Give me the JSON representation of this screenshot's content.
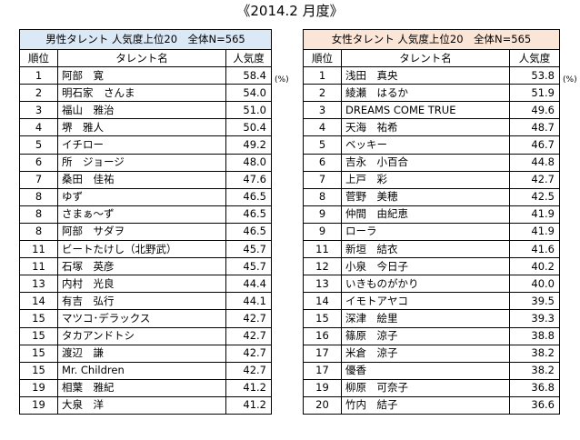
{
  "page_title": "《2014.2 月度》",
  "unit": "(%)",
  "male": {
    "header": "男性タレント 人気度上位20　全体N=565",
    "col_rank": "順位",
    "col_name": "タレント名",
    "col_value": "人気度",
    "rows": [
      {
        "rank": "1",
        "name": "阿部　寛",
        "value": "58.4"
      },
      {
        "rank": "2",
        "name": "明石家　さんま",
        "value": "54.0"
      },
      {
        "rank": "3",
        "name": "福山　雅治",
        "value": "51.0"
      },
      {
        "rank": "4",
        "name": "堺　雅人",
        "value": "50.4"
      },
      {
        "rank": "5",
        "name": "イチロー",
        "value": "49.2"
      },
      {
        "rank": "6",
        "name": "所　ジョージ",
        "value": "48.0"
      },
      {
        "rank": "7",
        "name": "桑田　佳祐",
        "value": "47.6"
      },
      {
        "rank": "8",
        "name": "ゆず",
        "value": "46.5"
      },
      {
        "rank": "8",
        "name": "さまぁ～ず",
        "value": "46.5"
      },
      {
        "rank": "8",
        "name": "阿部　サダヲ",
        "value": "46.5"
      },
      {
        "rank": "11",
        "name": "ビートたけし（北野武）",
        "value": "45.7"
      },
      {
        "rank": "11",
        "name": "石塚　英彦",
        "value": "45.7"
      },
      {
        "rank": "13",
        "name": "内村　光良",
        "value": "44.4"
      },
      {
        "rank": "14",
        "name": "有吉　弘行",
        "value": "44.1"
      },
      {
        "rank": "15",
        "name": "マツコ･デラックス",
        "value": "42.7"
      },
      {
        "rank": "15",
        "name": "タカアンドトシ",
        "value": "42.7"
      },
      {
        "rank": "15",
        "name": "渡辺　謙",
        "value": "42.7"
      },
      {
        "rank": "15",
        "name": "Mr. Children",
        "value": "42.7"
      },
      {
        "rank": "19",
        "name": "相葉　雅紀",
        "value": "41.2"
      },
      {
        "rank": "19",
        "name": "大泉　洋",
        "value": "41.2"
      }
    ]
  },
  "female": {
    "header": "女性タレント 人気度上位20　全体N=565",
    "col_rank": "順位",
    "col_name": "タレント名",
    "col_value": "人気度",
    "rows": [
      {
        "rank": "1",
        "name": "浅田　真央",
        "value": "53.8"
      },
      {
        "rank": "2",
        "name": "綾瀬　はるか",
        "value": "51.9"
      },
      {
        "rank": "3",
        "name": "DREAMS COME TRUE",
        "value": "49.6"
      },
      {
        "rank": "4",
        "name": "天海　祐希",
        "value": "48.7"
      },
      {
        "rank": "5",
        "name": "ベッキー",
        "value": "46.7"
      },
      {
        "rank": "6",
        "name": "吉永　小百合",
        "value": "44.8"
      },
      {
        "rank": "7",
        "name": "上戸　彩",
        "value": "42.7"
      },
      {
        "rank": "8",
        "name": "菅野　美穂",
        "value": "42.5"
      },
      {
        "rank": "9",
        "name": "仲間　由紀恵",
        "value": "41.9"
      },
      {
        "rank": "9",
        "name": "ローラ",
        "value": "41.9"
      },
      {
        "rank": "11",
        "name": "新垣　結衣",
        "value": "41.6"
      },
      {
        "rank": "12",
        "name": "小泉　今日子",
        "value": "40.2"
      },
      {
        "rank": "13",
        "name": "いきものがかり",
        "value": "40.0"
      },
      {
        "rank": "14",
        "name": "イモトアヤコ",
        "value": "39.5"
      },
      {
        "rank": "15",
        "name": "深津　絵里",
        "value": "39.3"
      },
      {
        "rank": "16",
        "name": "篠原　涼子",
        "value": "38.8"
      },
      {
        "rank": "17",
        "name": "米倉　涼子",
        "value": "38.2"
      },
      {
        "rank": "17",
        "name": "優香",
        "value": "38.2"
      },
      {
        "rank": "19",
        "name": "柳原　可奈子",
        "value": "36.8"
      },
      {
        "rank": "20",
        "name": "竹内　結子",
        "value": "36.6"
      }
    ]
  },
  "colors": {
    "male_header_bg": "#dbe8f6",
    "female_header_bg": "#fbe5d6"
  }
}
